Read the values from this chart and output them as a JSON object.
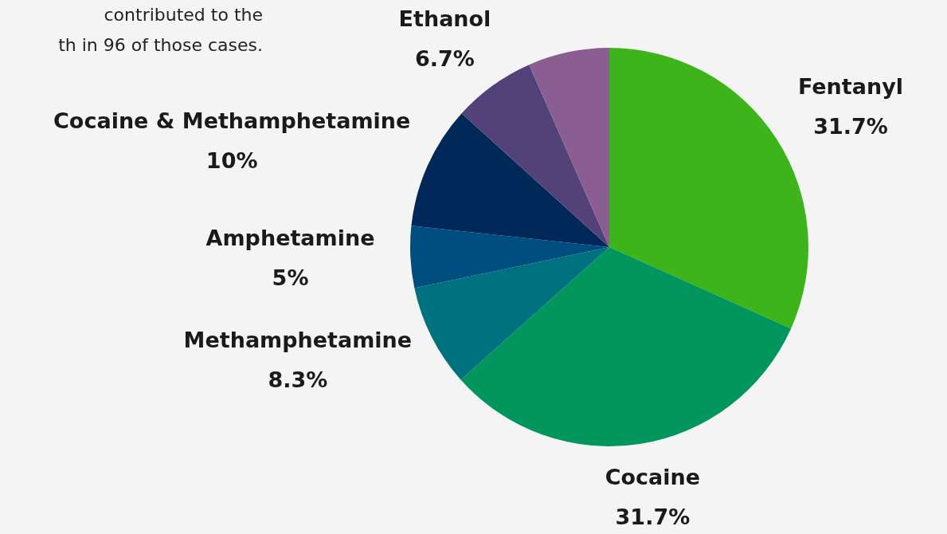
{
  "chart_data": {
    "type": "pie",
    "categories": [
      "Fentanyl",
      "Cocaine",
      "Methamphetamine",
      "Amphetamine",
      "Cocaine & Methamphetamine",
      "Ethanol",
      null
    ],
    "values": [
      31.7,
      31.7,
      8.3,
      5,
      10,
      6.7,
      6.6
    ],
    "value_labels": [
      "31.7%",
      "31.7%",
      "8.3%",
      "5%",
      "10%",
      "6.7%",
      null
    ],
    "colors": [
      "#3db41a",
      "#00965e",
      "#00717f",
      "#004e7f",
      "#00295a",
      "#524279",
      "#8b5e92"
    ],
    "legend": false,
    "annotations": [
      "contributed to the",
      "th in 96 of those cases."
    ]
  }
}
